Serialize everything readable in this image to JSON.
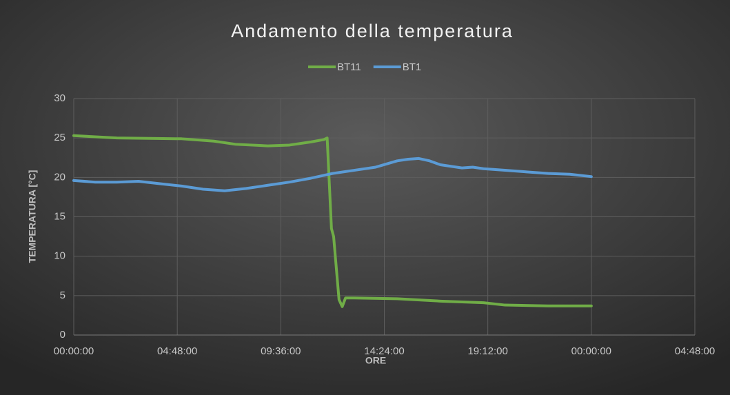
{
  "chart_data": {
    "type": "line",
    "title": "Andamento della temperatura",
    "x_label": "ORE",
    "y_label": "TEMPERATURA [°C]",
    "xlim": [
      0,
      28.8
    ],
    "xticks": [
      {
        "value": 0,
        "label": "00:00:00"
      },
      {
        "value": 4.8,
        "label": "04:48:00"
      },
      {
        "value": 9.6,
        "label": "09:36:00"
      },
      {
        "value": 14.4,
        "label": "14:24:00"
      },
      {
        "value": 19.2,
        "label": "19:12:00"
      },
      {
        "value": 24,
        "label": "00:00:00"
      },
      {
        "value": 28.8,
        "label": "04:48:00"
      }
    ],
    "ylim": [
      0,
      30
    ],
    "yticks": [
      0,
      5,
      10,
      15,
      20,
      25,
      30
    ],
    "grid": true,
    "legend": "top",
    "series": [
      {
        "name": "BT11",
        "color": "#70ad47",
        "x": [
          0,
          2,
          5,
          6.5,
          7.5,
          9,
          10,
          11,
          11.6,
          11.75,
          11.95,
          12.05,
          12.3,
          12.45,
          12.6,
          13,
          15,
          17,
          19,
          20,
          22,
          24
        ],
        "values": [
          25.3,
          25.0,
          24.9,
          24.6,
          24.2,
          24.0,
          24.1,
          24.5,
          24.8,
          25.0,
          13.5,
          12.5,
          4.5,
          3.6,
          4.7,
          4.7,
          4.6,
          4.3,
          4.1,
          3.8,
          3.7,
          3.7
        ]
      },
      {
        "name": "BT1",
        "color": "#5b9bd5",
        "x": [
          0,
          1,
          2,
          3,
          4,
          5,
          6,
          7,
          8,
          9,
          10,
          11,
          12,
          13,
          14,
          15,
          15.5,
          16,
          16.5,
          17,
          18,
          18.5,
          19,
          20,
          21,
          22,
          23,
          24
        ],
        "values": [
          19.6,
          19.4,
          19.4,
          19.5,
          19.2,
          18.9,
          18.5,
          18.3,
          18.6,
          19.0,
          19.4,
          19.9,
          20.5,
          20.9,
          21.3,
          22.1,
          22.3,
          22.4,
          22.1,
          21.6,
          21.2,
          21.3,
          21.1,
          20.9,
          20.7,
          20.5,
          20.4,
          20.1
        ]
      }
    ]
  }
}
